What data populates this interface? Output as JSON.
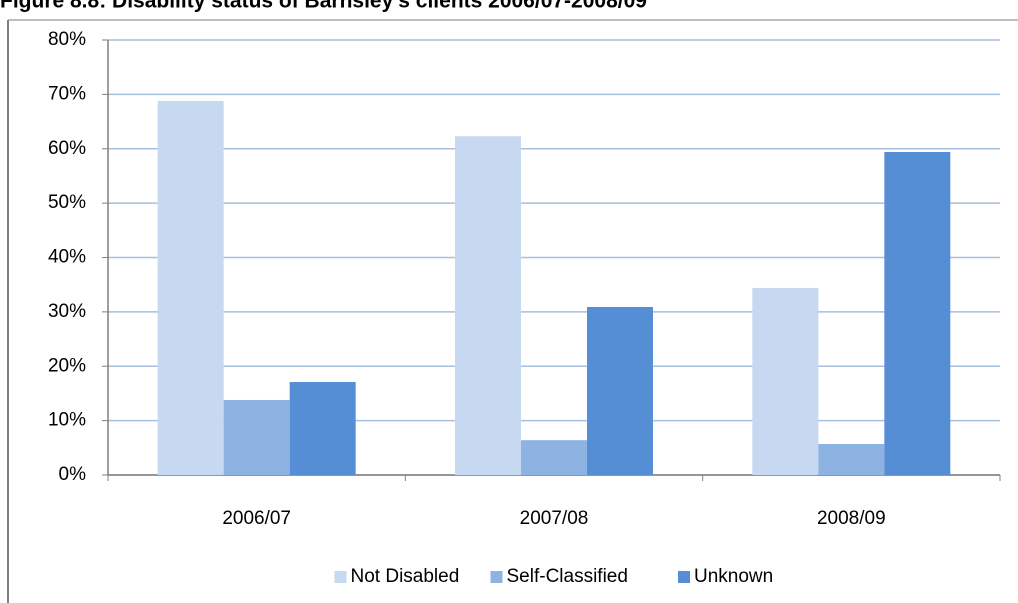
{
  "chart_data": {
    "type": "bar",
    "title": "Figure 8.8: Disability status of Barnsley's clients 2006/07-2008/09",
    "categories": [
      "2006/07",
      "2007/08",
      "2008/09"
    ],
    "series": [
      {
        "name": "Not Disabled",
        "color": "#c6d9f1",
        "values": [
          68.8,
          62.3,
          34.4
        ]
      },
      {
        "name": "Self-Classified",
        "color": "#8db3e2",
        "values": [
          13.8,
          6.4,
          5.7
        ]
      },
      {
        "name": "Unknown",
        "color": "#558ed5",
        "values": [
          17.1,
          30.9,
          59.4
        ]
      }
    ],
    "ylim": [
      0,
      80
    ],
    "yticks": [
      {
        "value": 0,
        "label": "0%"
      },
      {
        "value": 10,
        "label": "10%"
      },
      {
        "value": 20,
        "label": "20%"
      },
      {
        "value": 30,
        "label": "30%"
      },
      {
        "value": 40,
        "label": "40%"
      },
      {
        "value": 50,
        "label": "50%"
      },
      {
        "value": 60,
        "label": "60%"
      },
      {
        "value": 70,
        "label": "70%"
      },
      {
        "value": 80,
        "label": "80%"
      }
    ],
    "grid": true,
    "legend": "bottom"
  }
}
